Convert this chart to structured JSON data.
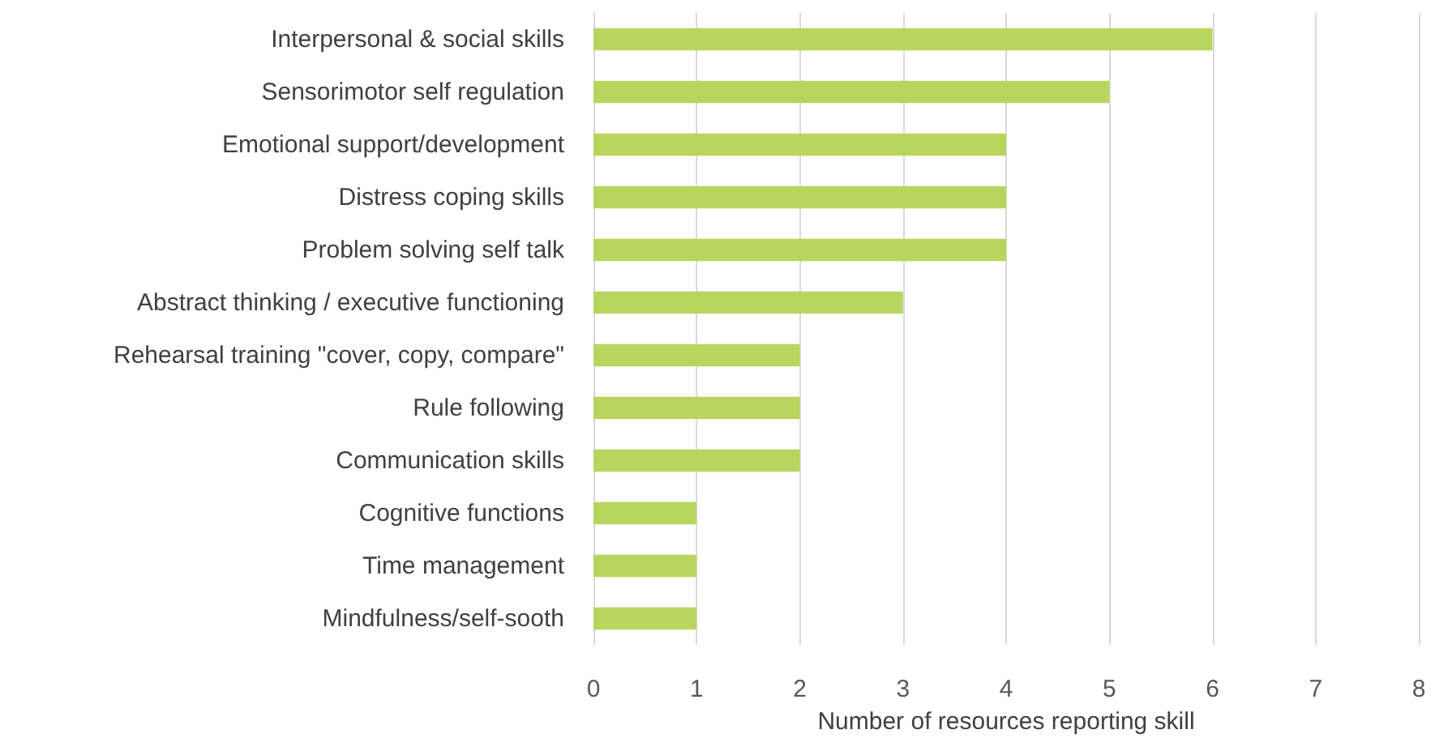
{
  "chart_data": {
    "type": "bar",
    "orientation": "horizontal",
    "xlabel": "Number of resources reporting skill",
    "categories": [
      "Interpersonal & social skills",
      "Sensorimotor self regulation",
      "Emotional support/development",
      "Distress coping skills",
      "Problem solving self talk",
      "Abstract thinking / executive functioning",
      "Rehearsal training \"cover, copy, compare\"",
      "Rule following",
      "Communication skills",
      "Cognitive functions",
      "Time management",
      "Mindfulness/self-sooth"
    ],
    "values": [
      6,
      5,
      4,
      4,
      4,
      3,
      2,
      2,
      2,
      1,
      1,
      1
    ],
    "color": "#b8d55e",
    "xlim": [
      0,
      8
    ],
    "xticks": [
      0,
      1,
      2,
      3,
      4,
      5,
      6,
      7,
      8
    ],
    "grid": "x"
  }
}
